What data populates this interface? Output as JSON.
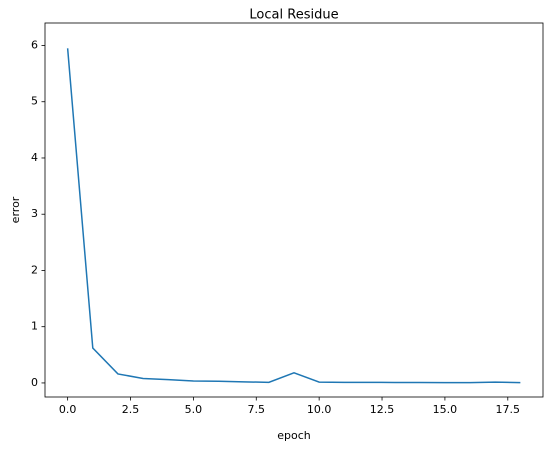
{
  "chart_data": {
    "type": "line",
    "title": "Local Residue",
    "x_label": "epoch",
    "y_label": "error",
    "series": [
      {
        "color": "#1f77b4",
        "x": [
          0,
          1,
          2,
          3,
          4,
          5,
          6,
          7,
          8,
          9,
          10,
          11,
          12,
          13,
          14,
          15,
          16,
          17,
          18
        ],
        "values": [
          5.95,
          0.62,
          0.16,
          0.08,
          0.06,
          0.035,
          0.03,
          0.02,
          0.01,
          0.18,
          0.015,
          0.01,
          0.01,
          0.008,
          0.007,
          0.006,
          0.005,
          0.015,
          0.005
        ]
      }
    ],
    "xlim": [
      -0.9,
      18.9
    ],
    "xticks": [
      {
        "value": 0,
        "label": "0.0"
      },
      {
        "value": 2.5,
        "label": "2.5"
      },
      {
        "value": 5,
        "label": "5.0"
      },
      {
        "value": 7.5,
        "label": "7.5"
      },
      {
        "value": 10,
        "label": "10.0"
      },
      {
        "value": 12.5,
        "label": "12.5"
      },
      {
        "value": 15,
        "label": "15.0"
      },
      {
        "value": 17.5,
        "label": "17.5"
      }
    ],
    "ylim": [
      -0.25,
      6.4
    ],
    "yticks": [
      0,
      1,
      2,
      3,
      4,
      5,
      6
    ]
  }
}
